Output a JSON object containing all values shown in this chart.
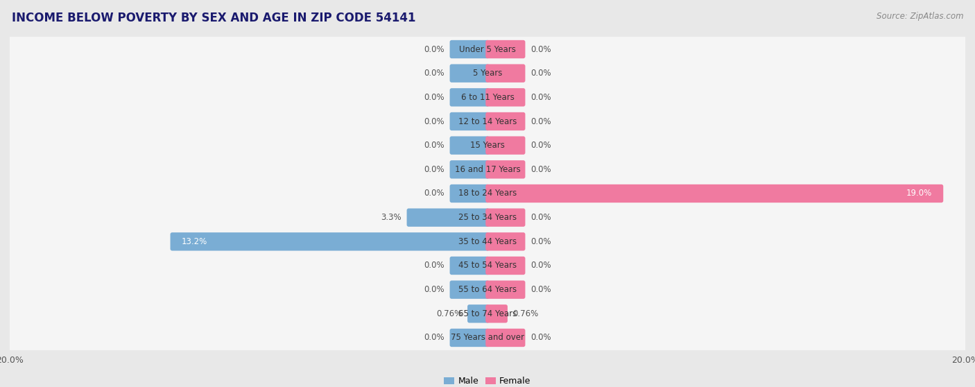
{
  "title": "INCOME BELOW POVERTY BY SEX AND AGE IN ZIP CODE 54141",
  "source": "Source: ZipAtlas.com",
  "categories": [
    "Under 5 Years",
    "5 Years",
    "6 to 11 Years",
    "12 to 14 Years",
    "15 Years",
    "16 and 17 Years",
    "18 to 24 Years",
    "25 to 34 Years",
    "35 to 44 Years",
    "45 to 54 Years",
    "55 to 64 Years",
    "65 to 74 Years",
    "75 Years and over"
  ],
  "male_values": [
    0.0,
    0.0,
    0.0,
    0.0,
    0.0,
    0.0,
    0.0,
    3.3,
    13.2,
    0.0,
    0.0,
    0.76,
    0.0
  ],
  "female_values": [
    0.0,
    0.0,
    0.0,
    0.0,
    0.0,
    0.0,
    19.0,
    0.0,
    0.0,
    0.0,
    0.0,
    0.76,
    0.0
  ],
  "male_color": "#7aadd4",
  "female_color": "#f07aa0",
  "male_label": "Male",
  "female_label": "Female",
  "axis_max": 20.0,
  "background_color": "#e8e8e8",
  "bar_bg_color": "#f5f5f5",
  "title_fontsize": 12,
  "source_fontsize": 8.5,
  "label_fontsize": 8.5,
  "tick_fontsize": 9,
  "stub_size": 1.5
}
